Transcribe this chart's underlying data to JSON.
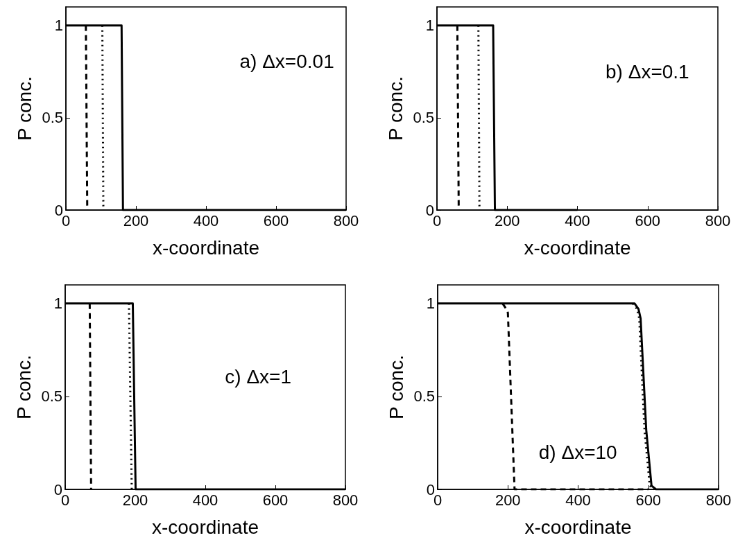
{
  "chart_data": [
    {
      "type": "line",
      "xlabel": "x-coordinate",
      "ylabel": "P conc.",
      "annotations": [
        "a) Δx=0.01"
      ],
      "xlim": [
        0,
        800
      ],
      "xticks": [
        0,
        200,
        400,
        600,
        800
      ],
      "ylim": [
        0,
        1.1
      ],
      "yticks": [
        0,
        0.5,
        1
      ],
      "grid": false,
      "marker": "none",
      "series": [
        {
          "color": "#000000",
          "line_style": "solid",
          "x": [
            0,
            159,
            163,
            800
          ],
          "values": [
            1,
            1,
            0,
            0
          ]
        },
        {
          "color": "#000000",
          "line_style": "dotted",
          "x": [
            104,
            107
          ],
          "values": [
            1,
            0
          ]
        },
        {
          "color": "#000000",
          "line_style": "dashed",
          "x": [
            57,
            61
          ],
          "values": [
            1,
            0
          ]
        }
      ]
    },
    {
      "type": "line",
      "xlabel": "x-coordinate",
      "ylabel": "P conc.",
      "annotations": [
        "b) Δx=0.1"
      ],
      "xlim": [
        0,
        800
      ],
      "xticks": [
        0,
        200,
        400,
        600,
        800
      ],
      "ylim": [
        0,
        1.1
      ],
      "yticks": [
        0,
        0.5,
        1
      ],
      "grid": false,
      "marker": "none",
      "series": [
        {
          "color": "#000000",
          "line_style": "solid",
          "x": [
            0,
            160,
            165,
            400
          ],
          "values": [
            1,
            1,
            0,
            0
          ]
        },
        {
          "color": "#000000",
          "line_style": "dotted",
          "x": [
            118,
            121
          ],
          "values": [
            1,
            0
          ]
        },
        {
          "color": "#000000",
          "line_style": "dashed",
          "x": [
            58,
            62
          ],
          "values": [
            1,
            0
          ]
        }
      ]
    },
    {
      "type": "line",
      "xlabel": "x-coordinate",
      "ylabel": "P conc.",
      "annotations": [
        "c) Δx=1"
      ],
      "xlim": [
        0,
        800
      ],
      "xticks": [
        0,
        200,
        400,
        600,
        800
      ],
      "ylim": [
        0,
        1.1
      ],
      "yticks": [
        0,
        0.5,
        1
      ],
      "grid": false,
      "marker": "none",
      "series": [
        {
          "color": "#000000",
          "line_style": "solid",
          "x": [
            0,
            193,
            201,
            800
          ],
          "values": [
            1,
            1,
            0,
            0
          ]
        },
        {
          "color": "#000000",
          "line_style": "dotted",
          "x": [
            182,
            190
          ],
          "values": [
            1,
            0
          ]
        },
        {
          "color": "#000000",
          "line_style": "dashed",
          "x": [
            70,
            74
          ],
          "values": [
            1,
            0
          ]
        }
      ]
    },
    {
      "type": "line",
      "xlabel": "x-coordinate",
      "ylabel": "P conc.",
      "annotations": [
        "d) Δx=10"
      ],
      "xlim": [
        0,
        800
      ],
      "xticks": [
        0,
        200,
        400,
        600,
        800
      ],
      "ylim": [
        0,
        1.1
      ],
      "yticks": [
        0,
        0.5,
        1
      ],
      "grid": false,
      "marker": "none",
      "series": [
        {
          "color": "#000000",
          "line_style": "solid",
          "x": [
            0,
            561,
            572,
            578,
            594,
            609,
            622,
            800
          ],
          "values": [
            1,
            1,
            0.97,
            0.92,
            0.32,
            0.02,
            0,
            0
          ]
        },
        {
          "color": "#000000",
          "line_style": "dotted",
          "x": [
            556,
            568,
            574,
            589,
            604,
            617
          ],
          "values": [
            1,
            0.97,
            0.92,
            0.32,
            0.02,
            0
          ]
        },
        {
          "color": "#000000",
          "line_style": "dashed",
          "x": [
            185,
            192,
            200,
            219,
            600
          ],
          "values": [
            1,
            0.98,
            0.95,
            0,
            0
          ]
        }
      ]
    }
  ]
}
